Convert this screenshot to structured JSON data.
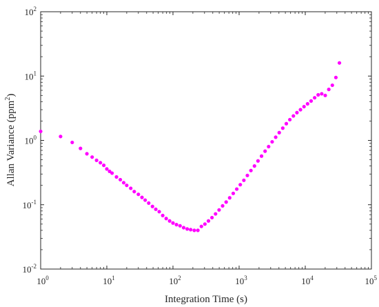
{
  "chart_data": {
    "type": "scatter",
    "xlabel": "Integration Time (s)",
    "ylabel": "Allan Variance (ppm",
    "ylabel_sup": "2",
    "ylabel_end": ")",
    "x_scale": "log",
    "y_scale": "log",
    "xlim": [
      1,
      100000
    ],
    "ylim": [
      0.01,
      100
    ],
    "x_ticks": [
      {
        "base": "10",
        "exp": "0"
      },
      {
        "base": "10",
        "exp": "1"
      },
      {
        "base": "10",
        "exp": "2"
      },
      {
        "base": "10",
        "exp": "3"
      },
      {
        "base": "10",
        "exp": "4"
      },
      {
        "base": "10",
        "exp": "5"
      }
    ],
    "y_ticks": [
      {
        "base": "10",
        "exp": "-2"
      },
      {
        "base": "10",
        "exp": "-1"
      },
      {
        "base": "10",
        "exp": "0"
      },
      {
        "base": "10",
        "exp": "1"
      },
      {
        "base": "10",
        "exp": "2"
      }
    ],
    "grid": false,
    "marker_color": "#ff00ff",
    "x": [
      1,
      2,
      3,
      4,
      5,
      6,
      7,
      8,
      9,
      10,
      11,
      12,
      14,
      16,
      18,
      20,
      23,
      26,
      30,
      34,
      38,
      43,
      49,
      55,
      62,
      70,
      79,
      89,
      100,
      113,
      128,
      145,
      164,
      185,
      210,
      238,
      269,
      304,
      344,
      389,
      440,
      498,
      563,
      637,
      720,
      815,
      921,
      1042,
      1179,
      1333,
      1508,
      1706,
      1929,
      2182,
      2469,
      2792,
      3158,
      3572,
      4041,
      4571,
      5170,
      5848,
      6615,
      7483,
      8464,
      9574,
      10830,
      12250,
      13860,
      15670,
      17730,
      20050,
      22680,
      25660,
      29020,
      32830
    ],
    "y": [
      1.38,
      1.15,
      0.93,
      0.75,
      0.62,
      0.55,
      0.49,
      0.45,
      0.41,
      0.36,
      0.33,
      0.31,
      0.27,
      0.245,
      0.22,
      0.2,
      0.18,
      0.16,
      0.145,
      0.13,
      0.118,
      0.106,
      0.094,
      0.085,
      0.078,
      0.068,
      0.061,
      0.056,
      0.052,
      0.049,
      0.047,
      0.044,
      0.042,
      0.041,
      0.04,
      0.04,
      0.046,
      0.05,
      0.056,
      0.063,
      0.072,
      0.083,
      0.096,
      0.11,
      0.128,
      0.15,
      0.175,
      0.205,
      0.24,
      0.285,
      0.34,
      0.4,
      0.48,
      0.57,
      0.68,
      0.8,
      0.95,
      1.12,
      1.32,
      1.55,
      1.82,
      2.1,
      2.4,
      2.7,
      3.0,
      3.35,
      3.7,
      4.1,
      4.6,
      5.1,
      5.3,
      5.0,
      6.2,
      7.2,
      9.5,
      16.0
    ]
  }
}
